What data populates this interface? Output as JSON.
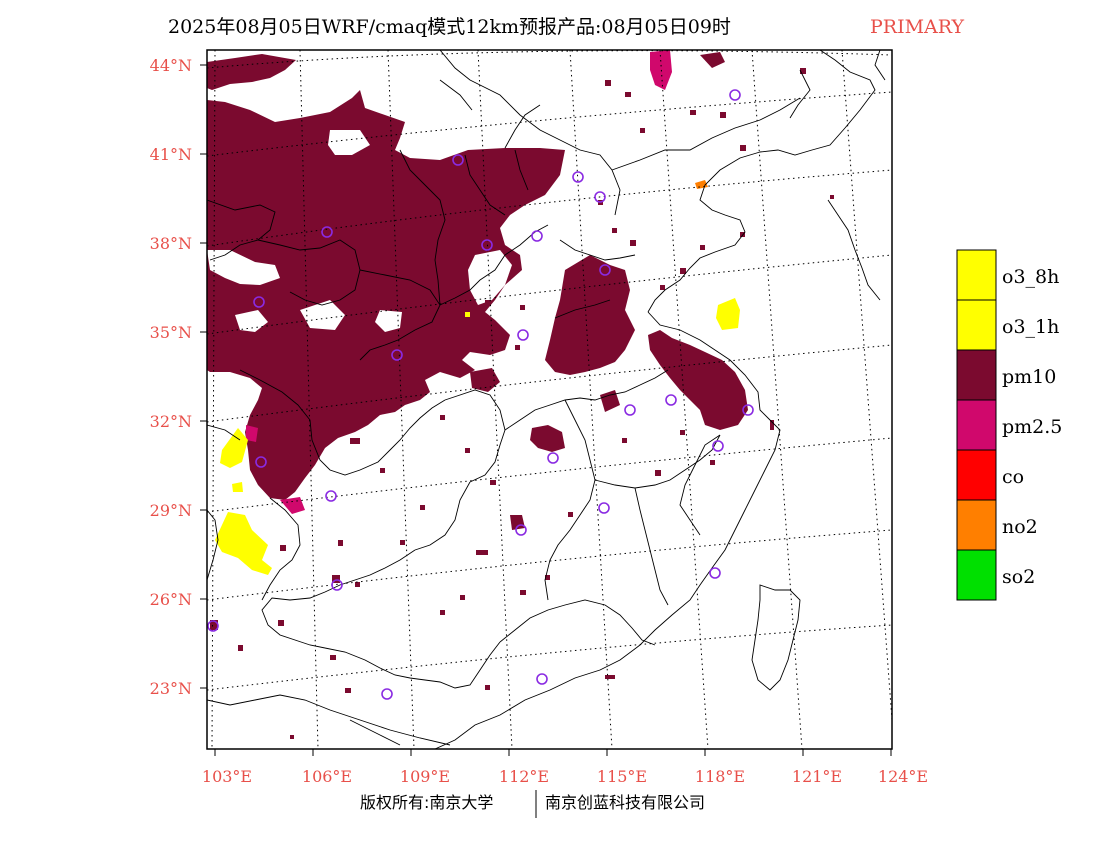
{
  "title": "2025年08月05日WRF/cmaq模式12km预报产品:08月05日09时",
  "title_tag": "PRIMARY",
  "credit_left": "版权所有:南京大学",
  "credit_right": "南京创蓝科技有限公司",
  "colors": {
    "tick_label": "#e8504a",
    "tag": "#e8504a",
    "pm10": "#7b0a2f",
    "pm25": "#d0086c",
    "o3": "#ffff00",
    "no2": "#ff7f00",
    "co": "#ff0000",
    "so2": "#00e000",
    "station": "#8a2be2"
  },
  "lat_labels": [
    "44°N",
    "41°N",
    "38°N",
    "35°N",
    "32°N",
    "29°N",
    "26°N",
    "23°N"
  ],
  "lon_labels": [
    "103°E",
    "106°E",
    "109°E",
    "112°E",
    "115°E",
    "118°E",
    "121°E",
    "124°E"
  ],
  "legend": [
    {
      "label": "o3_8h",
      "color": "#ffff00"
    },
    {
      "label": "o3_1h",
      "color": "#ffff00"
    },
    {
      "label": "pm10",
      "color": "#7b0a2f"
    },
    {
      "label": "pm2.5",
      "color": "#d0086c"
    },
    {
      "label": "co",
      "color": "#ff0000"
    },
    {
      "label": "no2",
      "color": "#ff7f00"
    },
    {
      "label": "so2",
      "color": "#00e000"
    }
  ]
}
